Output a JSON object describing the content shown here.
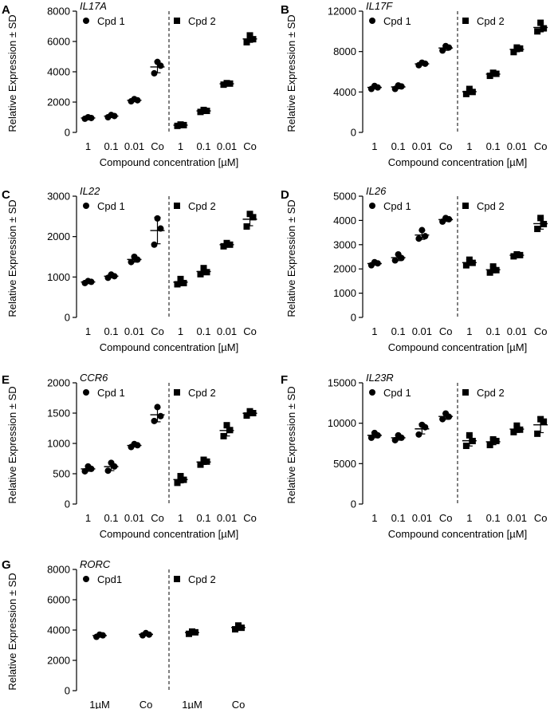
{
  "chart_data": [
    {
      "panel": "A",
      "title": "IL17A",
      "type": "scatter",
      "ylabel": "Relative Expression ± SD",
      "xlabel": "Compound concentration [µM]",
      "categories": [
        "1",
        "0.1",
        "0.01",
        "Co",
        "1",
        "0.1",
        "0.01",
        "Co"
      ],
      "ylim": [
        0,
        8000
      ],
      "yticks": [
        0,
        2000,
        4000,
        6000,
        8000
      ],
      "series": [
        {
          "name": "Cpd 1",
          "marker": "circle",
          "points": [
            [
              900,
              950,
              1000
            ],
            [
              1000,
              1080,
              1150
            ],
            [
              2050,
              2120,
              2200
            ],
            [
              3900,
              4400,
              4650
            ]
          ]
        },
        {
          "name": "Cpd 2",
          "marker": "square",
          "points": [
            [
              430,
              480,
              520
            ],
            [
              1350,
              1420,
              1480
            ],
            [
              3150,
              3220,
              3250
            ],
            [
              5950,
              6150,
              6400
            ]
          ]
        }
      ]
    },
    {
      "panel": "B",
      "title": "IL17F",
      "type": "scatter",
      "ylabel": "Relative Expression ± SD",
      "xlabel": "Compound concentration [µM]",
      "categories": [
        "1",
        "0.1",
        "0.01",
        "Co",
        "1",
        "0.1",
        "0.01",
        "Co"
      ],
      "ylim": [
        0,
        12000
      ],
      "yticks": [
        0,
        4000,
        8000,
        12000
      ],
      "series": [
        {
          "name": "Cpd 1",
          "marker": "circle",
          "points": [
            [
              4300,
              4450,
              4600
            ],
            [
              4300,
              4550,
              4650
            ],
            [
              6650,
              6800,
              6900
            ],
            [
              8100,
              8400,
              8550
            ]
          ]
        },
        {
          "name": "Cpd 2",
          "marker": "square",
          "points": [
            [
              3800,
              4000,
              4300
            ],
            [
              5600,
              5800,
              5900
            ],
            [
              7950,
              8300,
              8400
            ],
            [
              10000,
              10300,
              10850
            ]
          ]
        }
      ]
    },
    {
      "panel": "C",
      "title": "IL22",
      "type": "scatter",
      "ylabel": "Relative Expression ± SD",
      "xlabel": "Compound concentration [µM]",
      "categories": [
        "1",
        "0.1",
        "0.01",
        "Co",
        "1",
        "0.1",
        "0.01",
        "Co"
      ],
      "ylim": [
        0,
        3000
      ],
      "yticks": [
        0,
        1000,
        2000,
        3000
      ],
      "series": [
        {
          "name": "Cpd 1",
          "marker": "circle",
          "points": [
            [
              850,
              880,
              900
            ],
            [
              980,
              1020,
              1060
            ],
            [
              1370,
              1430,
              1500
            ],
            [
              1800,
              2200,
              2450
            ]
          ]
        },
        {
          "name": "Cpd 2",
          "marker": "square",
          "points": [
            [
              820,
              850,
              950
            ],
            [
              1070,
              1120,
              1220
            ],
            [
              1760,
              1800,
              1840
            ],
            [
              2250,
              2480,
              2560
            ]
          ]
        }
      ]
    },
    {
      "panel": "D",
      "title": "IL26",
      "type": "scatter",
      "ylabel": "Relative Expression ± SD",
      "xlabel": "Compound concentration [µM]",
      "categories": [
        "1",
        "0.1",
        "0.01",
        "Co",
        "1",
        "0.1",
        "0.01",
        "Co"
      ],
      "ylim": [
        0,
        5000
      ],
      "yticks": [
        0,
        1000,
        2000,
        3000,
        4000,
        5000
      ],
      "series": [
        {
          "name": "Cpd 1",
          "marker": "circle",
          "points": [
            [
              2150,
              2230,
              2280
            ],
            [
              2350,
              2450,
              2600
            ],
            [
              3250,
              3350,
              3600
            ],
            [
              3950,
              4050,
              4100
            ]
          ]
        },
        {
          "name": "Cpd 2",
          "marker": "square",
          "points": [
            [
              2150,
              2250,
              2380
            ],
            [
              1850,
              1950,
              2100
            ],
            [
              2520,
              2570,
              2600
            ],
            [
              3650,
              3850,
              4100
            ]
          ]
        }
      ]
    },
    {
      "panel": "E",
      "title": "CCR6",
      "type": "scatter",
      "ylabel": "Relative Expression ± SD",
      "xlabel": "Compound concentration [µM]",
      "categories": [
        "1",
        "0.1",
        "0.01",
        "Co",
        "1",
        "0.1",
        "0.01",
        "Co"
      ],
      "ylim": [
        0,
        2000
      ],
      "yticks": [
        0,
        500,
        1000,
        1500,
        2000
      ],
      "series": [
        {
          "name": "Cpd 1",
          "marker": "circle",
          "points": [
            [
              540,
              580,
              620
            ],
            [
              550,
              620,
              680
            ],
            [
              940,
              970,
              990
            ],
            [
              1370,
              1450,
              1600
            ]
          ]
        },
        {
          "name": "Cpd 2",
          "marker": "square",
          "points": [
            [
              350,
              400,
              460
            ],
            [
              650,
              700,
              730
            ],
            [
              1120,
              1220,
              1300
            ],
            [
              1460,
              1500,
              1530
            ]
          ]
        }
      ]
    },
    {
      "panel": "F",
      "title": "IL23R",
      "type": "scatter",
      "ylabel": "Relative Expression ± SD",
      "xlabel": "Compound concentration [µM]",
      "categories": [
        "1",
        "0.1",
        "0.01",
        "Co",
        "1",
        "0.1",
        "0.01",
        "Co"
      ],
      "ylim": [
        0,
        15000
      ],
      "yticks": [
        0,
        5000,
        10000,
        15000
      ],
      "series": [
        {
          "name": "Cpd 1",
          "marker": "circle",
          "points": [
            [
              8200,
              8500,
              8800
            ],
            [
              7900,
              8200,
              8500
            ],
            [
              8600,
              9500,
              9800
            ],
            [
              10500,
              10800,
              11200
            ]
          ]
        },
        {
          "name": "Cpd 2",
          "marker": "square",
          "points": [
            [
              7200,
              7800,
              8500
            ],
            [
              7300,
              7800,
              8000
            ],
            [
              8900,
              9200,
              9700
            ],
            [
              8700,
              10200,
              10500
            ]
          ]
        }
      ]
    },
    {
      "panel": "G",
      "title": "RORC",
      "type": "scatter",
      "ylabel": "Relative Expression ± SD",
      "xlabel": "",
      "categories": [
        "1µM",
        "Co",
        "1µM",
        "Co"
      ],
      "ylim": [
        0,
        8000
      ],
      "yticks": [
        0,
        2000,
        4000,
        6000,
        8000
      ],
      "series": [
        {
          "name": "Cpd1",
          "marker": "circle",
          "points": [
            [
              3550,
              3650,
              3700
            ],
            [
              3650,
              3700,
              3800
            ]
          ]
        },
        {
          "name": "Cpd 2",
          "marker": "square",
          "points": [
            [
              3750,
              3850,
              3900
            ],
            [
              4050,
              4150,
              4300
            ]
          ]
        }
      ]
    }
  ]
}
